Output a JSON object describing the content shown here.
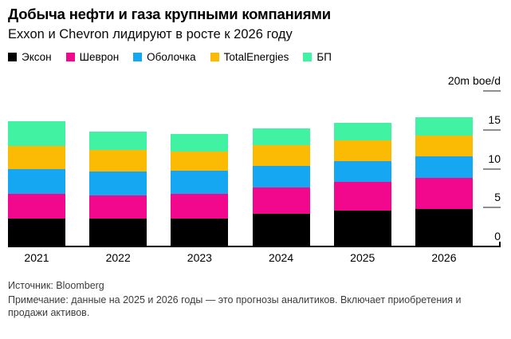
{
  "title": "Добыча нефти и газа крупными компаниями",
  "subtitle": "Exxon и Chevron лидируют в росте к 2026 году",
  "axis": {
    "unit_label": "20m boe/d",
    "ticks": [
      {
        "value": 20,
        "label": "20m boe/d"
      },
      {
        "value": 15,
        "label": "15"
      },
      {
        "value": 10,
        "label": "10"
      },
      {
        "value": 5,
        "label": "5"
      },
      {
        "value": 0,
        "label": "0"
      }
    ]
  },
  "chart_data": {
    "type": "bar",
    "stacked": true,
    "categories": [
      "2021",
      "2022",
      "2023",
      "2024",
      "2025",
      "2026"
    ],
    "series": [
      {
        "name": "Эксон",
        "color": "#000000",
        "values": [
          3.6,
          3.6,
          3.6,
          4.2,
          4.6,
          4.8
        ]
      },
      {
        "name": "Шеврон",
        "color": "#F2088C",
        "values": [
          3.2,
          3.0,
          3.2,
          3.4,
          3.7,
          4.0
        ]
      },
      {
        "name": "Оболочка",
        "color": "#16A7F2",
        "values": [
          3.2,
          3.0,
          2.9,
          2.8,
          2.7,
          2.8
        ]
      },
      {
        "name": "TotalEnergies",
        "color": "#FBBB04",
        "values": [
          2.9,
          2.8,
          2.5,
          2.6,
          2.7,
          2.7
        ]
      },
      {
        "name": "БП",
        "color": "#42F2A3",
        "values": [
          3.2,
          2.4,
          2.3,
          2.2,
          2.2,
          2.3
        ]
      }
    ],
    "totals": [
      16.1,
      14.8,
      14.5,
      15.2,
      15.9,
      16.6
    ],
    "ylabel": "20m boe/d",
    "ylim": [
      0,
      20
    ],
    "grid": false,
    "legend_position": "top"
  },
  "footer": {
    "source": "Источник: Bloomberg",
    "note": "Примечание: данные на 2025 и 2026 годы — это прогнозы аналитиков. Включает приобретения и продажи активов."
  }
}
